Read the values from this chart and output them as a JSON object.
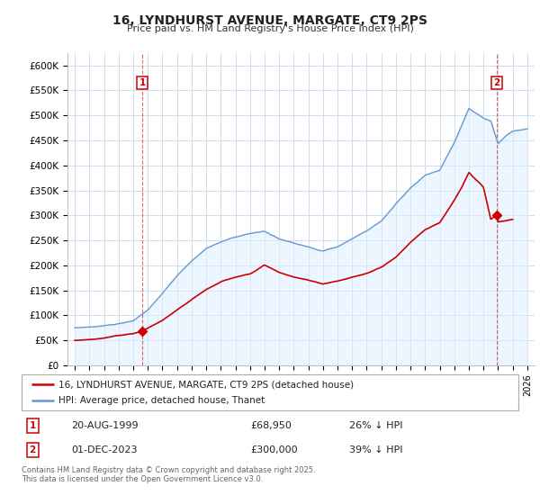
{
  "title": "16, LYNDHURST AVENUE, MARGATE, CT9 2PS",
  "subtitle": "Price paid vs. HM Land Registry's House Price Index (HPI)",
  "ylim": [
    0,
    625000
  ],
  "yticks": [
    0,
    50000,
    100000,
    150000,
    200000,
    250000,
    300000,
    350000,
    400000,
    450000,
    500000,
    550000,
    600000
  ],
  "ytick_labels": [
    "£0",
    "£50K",
    "£100K",
    "£150K",
    "£200K",
    "£250K",
    "£300K",
    "£350K",
    "£400K",
    "£450K",
    "£500K",
    "£550K",
    "£600K"
  ],
  "xlim": [
    1994.5,
    2026.5
  ],
  "xticks": [
    1995,
    1996,
    1997,
    1998,
    1999,
    2000,
    2001,
    2002,
    2003,
    2004,
    2005,
    2006,
    2007,
    2008,
    2009,
    2010,
    2011,
    2012,
    2013,
    2014,
    2015,
    2016,
    2017,
    2018,
    2019,
    2020,
    2021,
    2022,
    2023,
    2024,
    2025,
    2026
  ],
  "sale1_x": 1999.64,
  "sale1_y": 68950,
  "sale2_x": 2023.92,
  "sale2_y": 300000,
  "legend_line1": "16, LYNDHURST AVENUE, MARGATE, CT9 2PS (detached house)",
  "legend_line2": "HPI: Average price, detached house, Thanet",
  "ann1_date": "20-AUG-1999",
  "ann1_price": "£68,950",
  "ann1_hpi": "26% ↓ HPI",
  "ann2_date": "01-DEC-2023",
  "ann2_price": "£300,000",
  "ann2_hpi": "39% ↓ HPI",
  "footer": "Contains HM Land Registry data © Crown copyright and database right 2025.\nThis data is licensed under the Open Government Licence v3.0.",
  "red_color": "#cc0000",
  "blue_color": "#6699cc",
  "blue_fill": "#ddeeff",
  "background_color": "#ffffff",
  "grid_color": "#ccddee"
}
